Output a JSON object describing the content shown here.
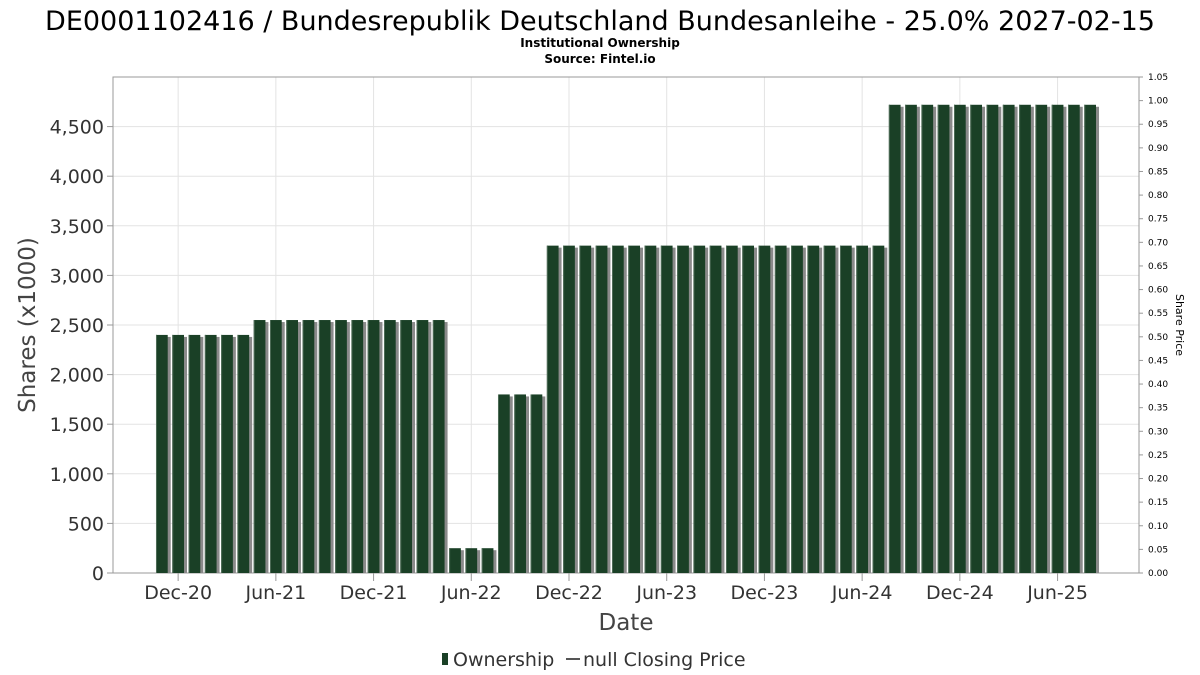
{
  "chart_data": {
    "type": "bar",
    "title": "DE0001102416 / Bundesrepublik Deutschland Bundesanleihe - 25.0% 2027-02-15",
    "subtitle_1": "Institutional Ownership",
    "subtitle_2": "Source: Fintel.io",
    "xlabel": "Date",
    "ylabel": "Shares (x1000)",
    "y2label": "Share Price",
    "ylim": [
      0,
      5000
    ],
    "y2lim": [
      0,
      1.05
    ],
    "yticks": [
      0,
      500,
      1000,
      1500,
      2000,
      2500,
      3000,
      3500,
      4000,
      4500
    ],
    "ytick_labels": [
      "0",
      "500",
      "1,000",
      "1,500",
      "2,000",
      "2,500",
      "3,000",
      "3,500",
      "4,000",
      "4,500"
    ],
    "y2ticks": [
      0,
      0.05,
      0.1,
      0.15,
      0.2,
      0.25,
      0.3,
      0.35,
      0.4,
      0.45,
      0.5,
      0.55,
      0.6,
      0.65,
      0.7,
      0.75,
      0.8,
      0.85,
      0.9,
      0.95,
      1.0,
      1.05
    ],
    "y2tick_labels": [
      "0.00",
      "0.05",
      "0.10",
      "0.15",
      "0.20",
      "0.25",
      "0.30",
      "0.35",
      "0.40",
      "0.45",
      "0.50",
      "0.55",
      "0.60",
      "0.65",
      "0.70",
      "0.75",
      "0.80",
      "0.85",
      "0.90",
      "0.95",
      "1.00",
      "1.05"
    ],
    "x_tick_labels": [
      "Dec-20",
      "Jun-21",
      "Dec-21",
      "Jun-22",
      "Dec-22",
      "Jun-23",
      "Dec-23",
      "Jun-24",
      "Dec-24",
      "Jun-25"
    ],
    "x_tick_months": [
      "2020-12",
      "2021-06",
      "2021-12",
      "2022-06",
      "2022-12",
      "2023-06",
      "2023-12",
      "2024-06",
      "2024-12",
      "2025-06"
    ],
    "xlim": [
      "2020-08",
      "2025-11"
    ],
    "grid": true,
    "legend_position": "bottom-center",
    "series": [
      {
        "name": "Ownership",
        "color": "#1a4026",
        "x": [
          "2020-11",
          "2020-12",
          "2021-01",
          "2021-02",
          "2021-03",
          "2021-04",
          "2021-05",
          "2021-06",
          "2021-07",
          "2021-08",
          "2021-09",
          "2021-10",
          "2021-11",
          "2021-12",
          "2022-01",
          "2022-02",
          "2022-03",
          "2022-04",
          "2022-05",
          "2022-06",
          "2022-07",
          "2022-08",
          "2022-09",
          "2022-10",
          "2022-11",
          "2022-12",
          "2023-01",
          "2023-02",
          "2023-03",
          "2023-04",
          "2023-05",
          "2023-06",
          "2023-07",
          "2023-08",
          "2023-09",
          "2023-10",
          "2023-11",
          "2023-12",
          "2024-01",
          "2024-02",
          "2024-03",
          "2024-04",
          "2024-05",
          "2024-06",
          "2024-07",
          "2024-08",
          "2024-09",
          "2024-10",
          "2024-11",
          "2024-12",
          "2025-01",
          "2025-02",
          "2025-03",
          "2025-04",
          "2025-05",
          "2025-06",
          "2025-07",
          "2025-08"
        ],
        "values": [
          2400,
          2400,
          2400,
          2400,
          2400,
          2400,
          2550,
          2550,
          2550,
          2550,
          2550,
          2550,
          2550,
          2550,
          2550,
          2550,
          2550,
          2550,
          250,
          250,
          250,
          1800,
          1800,
          1800,
          3300,
          3300,
          3300,
          3300,
          3300,
          3300,
          3300,
          3300,
          3300,
          3300,
          3300,
          3300,
          3300,
          3300,
          3300,
          3300,
          3300,
          3300,
          3300,
          3300,
          3300,
          4720,
          4720,
          4720,
          4720,
          4720,
          4720,
          4720,
          4720,
          4720,
          4720,
          4720,
          4720,
          4720
        ]
      },
      {
        "name": "null Closing Price",
        "color": "#555555",
        "values": []
      }
    ]
  }
}
